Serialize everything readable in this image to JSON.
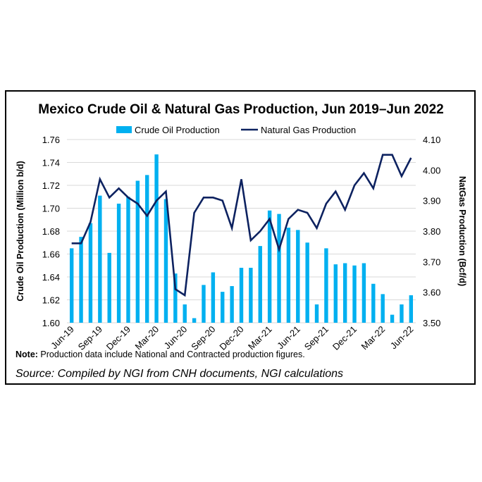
{
  "chart_data": {
    "type": "bar+line",
    "title": "Mexico Crude Oil & Natural Gas Production, Jun 2019–Jun 2022",
    "categories": [
      "Jun-19",
      "Jul-19",
      "Aug-19",
      "Sep-19",
      "Oct-19",
      "Nov-19",
      "Dec-19",
      "Jan-20",
      "Feb-20",
      "Mar-20",
      "Apr-20",
      "May-20",
      "Jun-20",
      "Jul-20",
      "Aug-20",
      "Sep-20",
      "Oct-20",
      "Nov-20",
      "Dec-20",
      "Jan-21",
      "Feb-21",
      "Mar-21",
      "Apr-21",
      "May-21",
      "Jun-21",
      "Jul-21",
      "Aug-21",
      "Sep-21",
      "Oct-21",
      "Nov-21",
      "Dec-21",
      "Jan-22",
      "Feb-22",
      "Mar-22",
      "Apr-22",
      "May-22",
      "Jun-22"
    ],
    "xtick_labels": [
      "Jun-19",
      "Sep-19",
      "Dec-19",
      "Mar-20",
      "Jun-20",
      "Sep-20",
      "Dec-20",
      "Mar-21",
      "Jun-21",
      "Sep-21",
      "Dec-21",
      "Mar-22",
      "Jun-22"
    ],
    "series": [
      {
        "name": "Crude Oil Production",
        "type": "bar",
        "axis": "left",
        "color": "#00b0f0",
        "values": [
          1.665,
          1.675,
          1.687,
          1.711,
          1.661,
          1.704,
          1.71,
          1.724,
          1.729,
          1.747,
          1.708,
          1.643,
          1.616,
          1.604,
          1.633,
          1.644,
          1.627,
          1.632,
          1.648,
          1.648,
          1.667,
          1.698,
          1.695,
          1.683,
          1.681,
          1.67,
          1.616,
          1.665,
          1.651,
          1.652,
          1.65,
          1.652,
          1.634,
          1.625,
          1.607,
          1.616,
          1.624
        ]
      },
      {
        "name": "Natural Gas Production",
        "type": "line",
        "axis": "right",
        "color": "#0d2260",
        "values": [
          3.76,
          3.76,
          3.83,
          3.97,
          3.91,
          3.94,
          3.91,
          3.89,
          3.85,
          3.9,
          3.93,
          3.61,
          3.59,
          3.86,
          3.91,
          3.91,
          3.9,
          3.81,
          3.97,
          3.77,
          3.8,
          3.84,
          3.74,
          3.84,
          3.87,
          3.86,
          3.81,
          3.89,
          3.93,
          3.87,
          3.95,
          3.99,
          3.94,
          4.05,
          4.05,
          3.98,
          4.04
        ]
      }
    ],
    "ylabel_left": "Crude Oil Production (Million b/d)",
    "ylabel_right": "NatGas Production (Bcf/d)",
    "ylim_left": [
      1.6,
      1.76
    ],
    "ylim_right": [
      3.5,
      4.1
    ],
    "yticks_left": [
      "1.60",
      "1.62",
      "1.64",
      "1.66",
      "1.68",
      "1.70",
      "1.72",
      "1.74",
      "1.76"
    ],
    "yticks_right": [
      "3.50",
      "3.60",
      "3.70",
      "3.80",
      "3.90",
      "4.00",
      "4.10"
    ],
    "grid": true,
    "legend": "top"
  },
  "note_label": "Note:",
  "note_text": " Production data include National and Contracted production figures.",
  "source": "Source: Compiled by NGI from CNH documents, NGI calculations"
}
